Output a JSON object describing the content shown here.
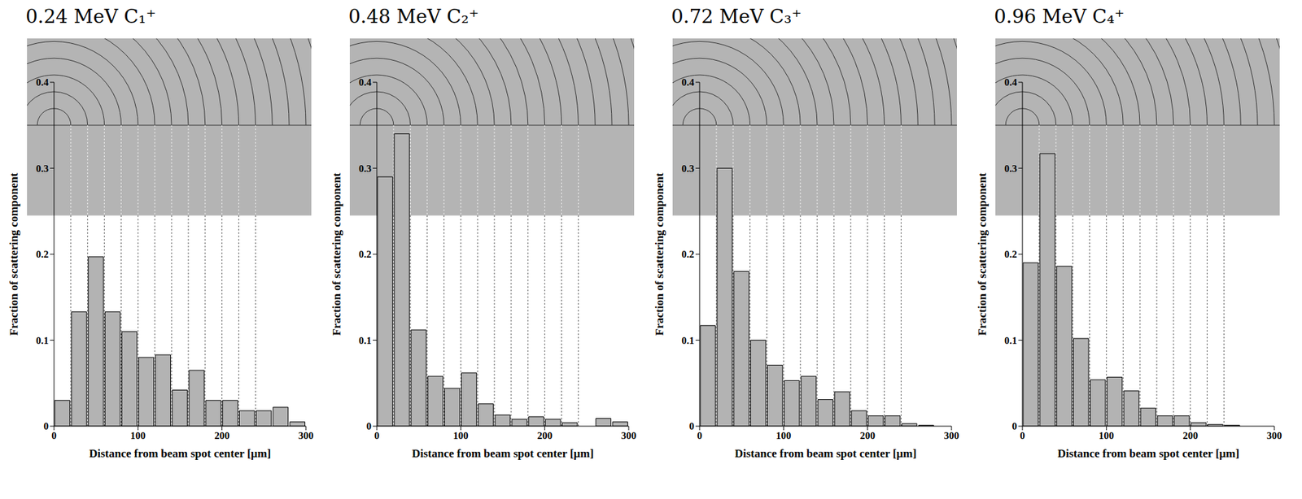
{
  "chart_data": [
    {
      "type": "histogram",
      "title": "0.24 MeV C₁⁺",
      "x_label": "Distance from beam spot center [μm]",
      "y_label": "Fraction of scattering component",
      "bins": [
        0,
        20,
        40,
        60,
        80,
        100,
        120,
        140,
        160,
        180,
        200,
        220,
        240,
        260,
        280,
        300
      ],
      "values": [
        0.03,
        0.133,
        0.197,
        0.133,
        0.11,
        0.08,
        0.083,
        0.042,
        0.065,
        0.03,
        0.03,
        0.018,
        0.018,
        0.022,
        0.005
      ],
      "xlim": [
        0,
        300
      ],
      "ylim": [
        0,
        0.4
      ],
      "xticks": [
        0,
        100,
        200,
        300
      ],
      "yticks": [
        0,
        0.1,
        0.2,
        0.3,
        0.4
      ],
      "color": "#b3b3b3"
    },
    {
      "type": "histogram",
      "title": "0.48 MeV C₂⁺",
      "x_label": "Distance from beam spot center [μm]",
      "y_label": "Fraction of scattering component",
      "bins": [
        0,
        20,
        40,
        60,
        80,
        100,
        120,
        140,
        160,
        180,
        200,
        220,
        240,
        260,
        280,
        300
      ],
      "values": [
        0.29,
        0.34,
        0.112,
        0.058,
        0.044,
        0.062,
        0.026,
        0.013,
        0.008,
        0.011,
        0.008,
        0.004,
        0,
        0.009,
        0.005
      ],
      "xlim": [
        0,
        300
      ],
      "ylim": [
        0,
        0.4
      ],
      "xticks": [
        0,
        100,
        200,
        300
      ],
      "yticks": [
        0,
        0.1,
        0.2,
        0.3,
        0.4
      ],
      "color": "#b3b3b3"
    },
    {
      "type": "histogram",
      "title": "0.72 MeV C₃⁺",
      "x_label": "Distance from beam spot center [μm]",
      "y_label": "Fraction of scattering component",
      "bins": [
        0,
        20,
        40,
        60,
        80,
        100,
        120,
        140,
        160,
        180,
        200,
        220,
        240,
        260,
        280,
        300
      ],
      "values": [
        0.117,
        0.3,
        0.18,
        0.1,
        0.071,
        0.053,
        0.058,
        0.031,
        0.04,
        0.018,
        0.012,
        0.012,
        0.003,
        0.001,
        0
      ],
      "xlim": [
        0,
        300
      ],
      "ylim": [
        0,
        0.4
      ],
      "xticks": [
        0,
        100,
        200,
        300
      ],
      "yticks": [
        0,
        0.1,
        0.2,
        0.3,
        0.4
      ],
      "color": "#b3b3b3"
    },
    {
      "type": "histogram",
      "title": "0.96 MeV C₄⁺",
      "x_label": "Distance from beam spot center [μm]",
      "y_label": "Fraction of scattering component",
      "bins": [
        0,
        20,
        40,
        60,
        80,
        100,
        120,
        140,
        160,
        180,
        200,
        220,
        240,
        260,
        280,
        300
      ],
      "values": [
        0.19,
        0.317,
        0.186,
        0.102,
        0.054,
        0.057,
        0.041,
        0.021,
        0.012,
        0.012,
        0.004,
        0.002,
        0.001,
        0,
        0
      ],
      "xlim": [
        0,
        300
      ],
      "ylim": [
        0,
        0.4
      ],
      "xticks": [
        0,
        100,
        200,
        300
      ],
      "yticks": [
        0,
        0.1,
        0.2,
        0.3,
        0.4
      ],
      "color": "#b3b3b3"
    }
  ]
}
